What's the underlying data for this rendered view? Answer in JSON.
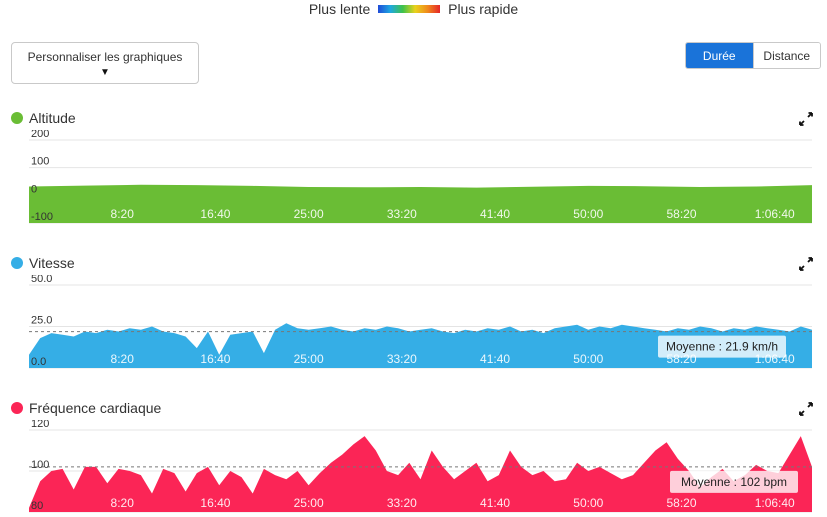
{
  "legend": {
    "slow": "Plus lente",
    "fast": "Plus rapide"
  },
  "customize_label": "Personnaliser les graphiques",
  "toggle": {
    "duration": "Durée",
    "distance": "Distance",
    "selected": "duration"
  },
  "colors": {
    "altitude": "#6abd35",
    "speed": "#35aee6",
    "heart": "#fb2556",
    "accent": "#1a73d9"
  },
  "x_ticks": [
    "8:20",
    "16:40",
    "25:00",
    "33:20",
    "41:40",
    "50:00",
    "58:20",
    "1:06:40"
  ],
  "sections": {
    "altitude": {
      "title": "Altitude",
      "y_ticks": [
        "200",
        "100",
        "0",
        "-100"
      ]
    },
    "speed": {
      "title": "Vitesse",
      "y_ticks": [
        "50.0",
        "25.0",
        "0.0"
      ],
      "avg_label": "Moyenne : 21.9 km/h"
    },
    "heart": {
      "title": "Fréquence cardiaque",
      "y_ticks": [
        "120",
        "100",
        "80"
      ],
      "avg_label": "Moyenne : 102 bpm"
    }
  },
  "chart_data": [
    {
      "type": "area",
      "title": "Altitude",
      "x_unit": "duration",
      "x": [
        0,
        300,
        600,
        900,
        1200,
        1500,
        1800,
        2100,
        2400,
        2700,
        3000,
        3300,
        3600,
        3900,
        4200
      ],
      "y": [
        32,
        35,
        38,
        37,
        34,
        30,
        29,
        30,
        28,
        31,
        34,
        33,
        30,
        32,
        37
      ],
      "ylim": [
        -100,
        200
      ],
      "grid": true
    },
    {
      "type": "area",
      "title": "Vitesse",
      "x_unit": "duration",
      "x": [
        0,
        60,
        120,
        180,
        240,
        300,
        360,
        420,
        480,
        540,
        600,
        660,
        720,
        780,
        840,
        900,
        960,
        1020,
        1080,
        1140,
        1200,
        1260,
        1320,
        1380,
        1440,
        1500,
        1560,
        1620,
        1680,
        1740,
        1800,
        1860,
        1920,
        1980,
        2040,
        2100,
        2160,
        2220,
        2280,
        2340,
        2400,
        2460,
        2520,
        2580,
        2640,
        2700,
        2760,
        2820,
        2880,
        2940,
        3000,
        3060,
        3120,
        3180,
        3240,
        3300,
        3360,
        3420,
        3480,
        3540,
        3600,
        3660,
        3720,
        3780,
        3840,
        3900,
        3960,
        4020,
        4080,
        4140,
        4200
      ],
      "y": [
        8,
        18,
        21,
        20,
        19,
        22,
        21,
        23,
        22,
        24,
        23,
        25,
        22,
        21,
        19,
        12,
        22,
        8,
        20,
        21,
        22,
        9,
        23,
        27,
        24,
        23,
        24,
        25,
        23,
        22,
        24,
        23,
        25,
        24,
        22,
        23,
        24,
        22,
        21,
        23,
        22,
        24,
        23,
        25,
        22,
        23,
        21,
        24,
        25,
        26,
        23,
        25,
        24,
        26,
        25,
        24,
        23,
        22,
        24,
        23,
        25,
        24,
        22,
        24,
        23,
        25,
        24,
        23,
        22,
        25,
        23
      ],
      "average": 21.9,
      "ylim": [
        0,
        50
      ],
      "grid": true
    },
    {
      "type": "area",
      "title": "Fréquence cardiaque",
      "x_unit": "duration",
      "x": [
        0,
        60,
        120,
        180,
        240,
        300,
        360,
        420,
        480,
        540,
        600,
        660,
        720,
        780,
        840,
        900,
        960,
        1020,
        1080,
        1140,
        1200,
        1260,
        1320,
        1380,
        1440,
        1500,
        1560,
        1620,
        1680,
        1740,
        1800,
        1860,
        1920,
        1980,
        2040,
        2100,
        2160,
        2220,
        2280,
        2340,
        2400,
        2460,
        2520,
        2580,
        2640,
        2700,
        2760,
        2820,
        2880,
        2940,
        3000,
        3060,
        3120,
        3180,
        3240,
        3300,
        3360,
        3420,
        3480,
        3540,
        3600,
        3660,
        3720,
        3780,
        3840,
        3900,
        3960,
        4020,
        4080,
        4140,
        4200
      ],
      "y": [
        82,
        95,
        100,
        101,
        91,
        102,
        102,
        94,
        101,
        100,
        98,
        89,
        101,
        99,
        90,
        99,
        102,
        93,
        100,
        97,
        89,
        101,
        98,
        96,
        100,
        93,
        99,
        104,
        108,
        113,
        117,
        110,
        100,
        98,
        104,
        96,
        110,
        102,
        96,
        100,
        104,
        95,
        98,
        110,
        102,
        98,
        100,
        95,
        96,
        104,
        100,
        102,
        99,
        96,
        98,
        104,
        110,
        114,
        106,
        100,
        92,
        97,
        101,
        95,
        98,
        103,
        100,
        99,
        108,
        117,
        102
      ],
      "average": 102,
      "ylim": [
        80,
        120
      ],
      "grid": true
    }
  ]
}
